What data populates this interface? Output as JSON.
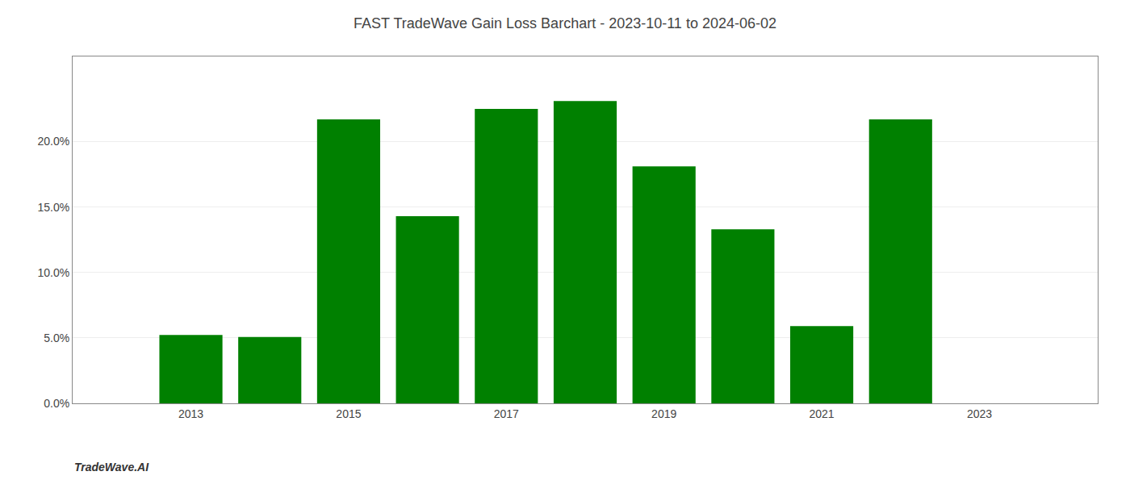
{
  "chart_data": {
    "type": "bar",
    "title": "FAST TradeWave Gain Loss Barchart - 2023-10-11 to 2024-06-02",
    "annotations": [
      "TradeWave.AI"
    ],
    "x": [
      2013,
      2014,
      2015,
      2016,
      2017,
      2018,
      2019,
      2020,
      2021,
      2022
    ],
    "values": [
      0.0523,
      0.0507,
      0.217,
      0.143,
      0.225,
      0.231,
      0.181,
      0.133,
      0.059,
      0.217
    ],
    "color": "#008000",
    "xlim": [
      2011.5,
      2024.5
    ],
    "xticks": [
      2013,
      2015,
      2017,
      2019,
      2021,
      2023
    ],
    "ylim": [
      0,
      0.265
    ],
    "yticks": [
      {
        "value": 0.0,
        "label": "0.0%"
      },
      {
        "value": 0.05,
        "label": "5.0%"
      },
      {
        "value": 0.1,
        "label": "10.0%"
      },
      {
        "value": 0.15,
        "label": "15.0%"
      },
      {
        "value": 0.2,
        "label": "20.0%"
      }
    ],
    "grid": true
  }
}
